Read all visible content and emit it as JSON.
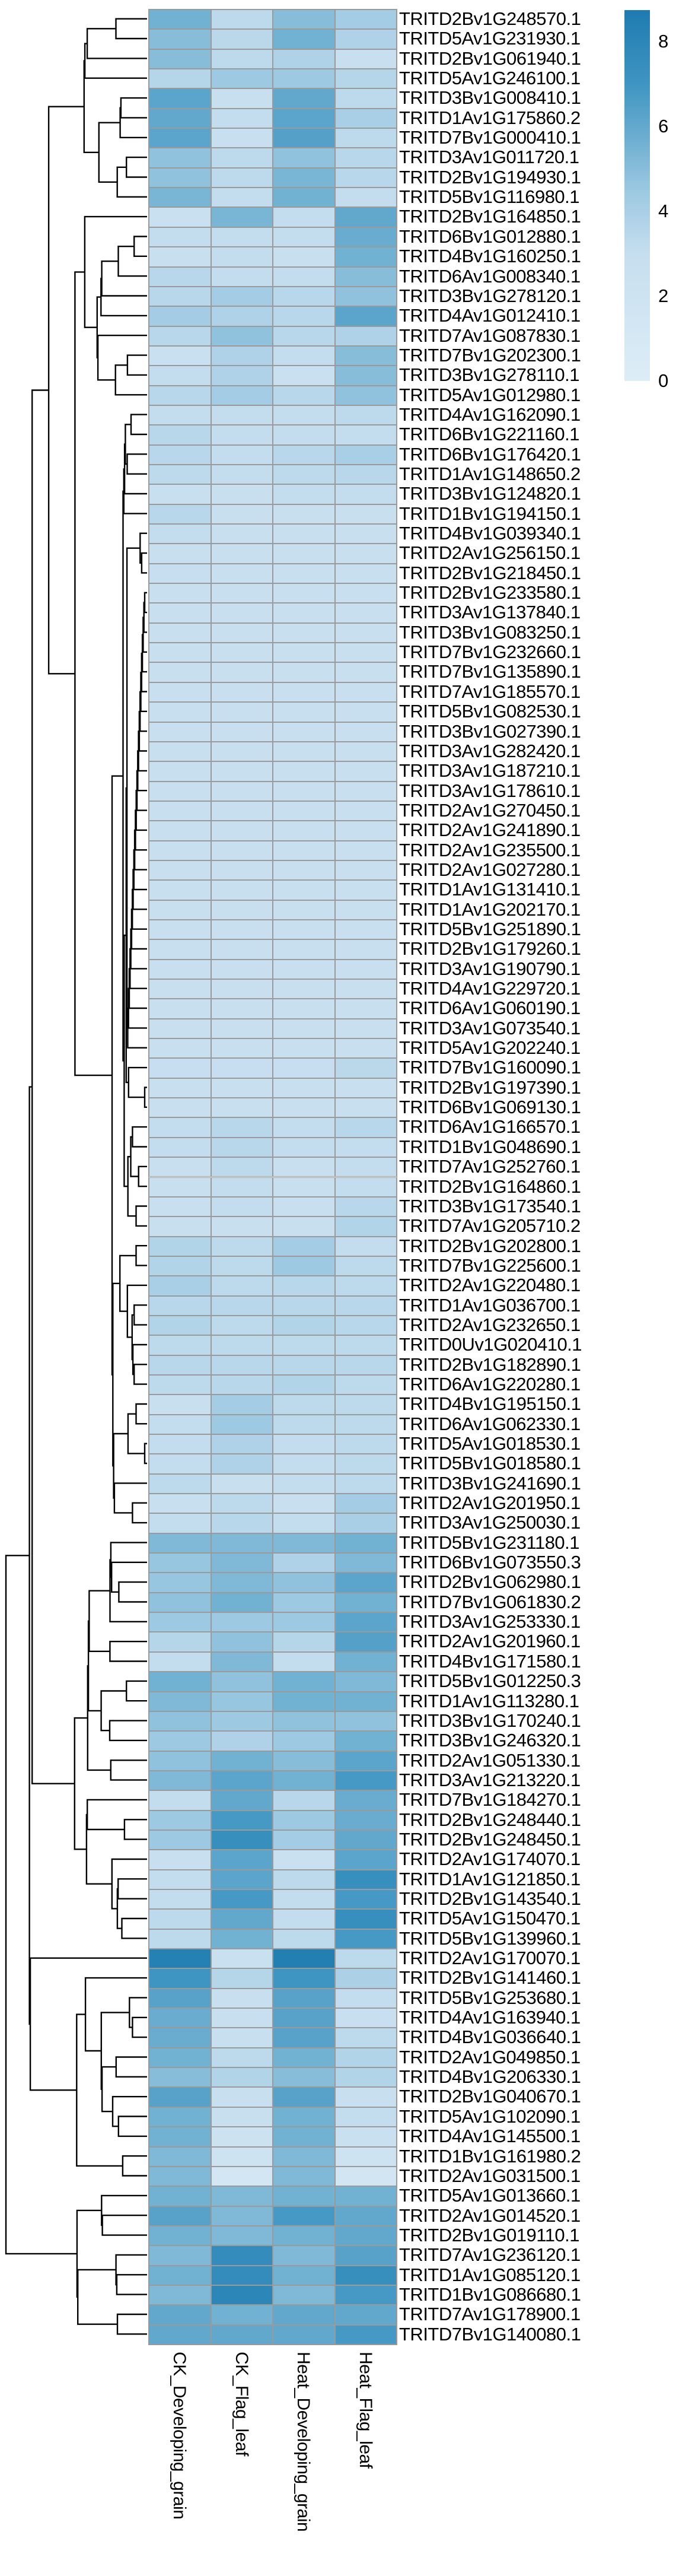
{
  "chart_data": {
    "type": "heatmap",
    "title": "",
    "xlabel": "",
    "ylabel": "",
    "grid": false,
    "row_dendrogram": true,
    "colorbar_position": "top-right",
    "columns": [
      "CK_Developing_grain",
      "CK_Flag_leaf",
      "Heat_Developing_grain",
      "Heat_Flag_leaf"
    ],
    "rows": [
      "TRITD2Bv1G248570.1",
      "TRITD5Av1G231930.1",
      "TRITD2Bv1G061940.1",
      "TRITD5Av1G246100.1",
      "TRITD3Bv1G008410.1",
      "TRITD1Av1G175860.2",
      "TRITD7Bv1G000410.1",
      "TRITD3Av1G011720.1",
      "TRITD2Bv1G194930.1",
      "TRITD5Bv1G116980.1",
      "TRITD2Bv1G164850.1",
      "TRITD6Bv1G012880.1",
      "TRITD4Bv1G160250.1",
      "TRITD6Av1G008340.1",
      "TRITD3Bv1G278120.1",
      "TRITD4Av1G012410.1",
      "TRITD7Av1G087830.1",
      "TRITD7Bv1G202300.1",
      "TRITD3Bv1G278110.1",
      "TRITD5Av1G012980.1",
      "TRITD4Av1G162090.1",
      "TRITD6Bv1G221160.1",
      "TRITD6Bv1G176420.1",
      "TRITD1Av1G148650.2",
      "TRITD3Bv1G124820.1",
      "TRITD1Bv1G194150.1",
      "TRITD4Bv1G039340.1",
      "TRITD2Av1G256150.1",
      "TRITD2Bv1G218450.1",
      "TRITD2Bv1G233580.1",
      "TRITD3Av1G137840.1",
      "TRITD3Bv1G083250.1",
      "TRITD7Bv1G232660.1",
      "TRITD7Bv1G135890.1",
      "TRITD7Av1G185570.1",
      "TRITD5Bv1G082530.1",
      "TRITD3Bv1G027390.1",
      "TRITD3Av1G282420.1",
      "TRITD3Av1G187210.1",
      "TRITD3Av1G178610.1",
      "TRITD2Av1G270450.1",
      "TRITD2Av1G241890.1",
      "TRITD2Av1G235500.1",
      "TRITD2Av1G027280.1",
      "TRITD1Av1G131410.1",
      "TRITD1Av1G202170.1",
      "TRITD5Bv1G251890.1",
      "TRITD2Bv1G179260.1",
      "TRITD3Av1G190790.1",
      "TRITD4Av1G229720.1",
      "TRITD6Av1G060190.1",
      "TRITD3Av1G073540.1",
      "TRITD5Av1G202240.1",
      "TRITD7Bv1G160090.1",
      "TRITD2Bv1G197390.1",
      "TRITD6Bv1G069130.1",
      "TRITD6Av1G166570.1",
      "TRITD1Bv1G048690.1",
      "TRITD7Av1G252760.1",
      "TRITD2Bv1G164860.1",
      "TRITD3Bv1G173540.1",
      "TRITD7Av1G205710.2",
      "TRITD2Bv1G202800.1",
      "TRITD7Bv1G225600.1",
      "TRITD2Av1G220480.1",
      "TRITD1Av1G036700.1",
      "TRITD2Av1G232650.1",
      "TRITD0Uv1G020410.1",
      "TRITD2Bv1G182890.1",
      "TRITD6Av1G220280.1",
      "TRITD4Bv1G195150.1",
      "TRITD6Av1G062330.1",
      "TRITD5Av1G018530.1",
      "TRITD5Bv1G018580.1",
      "TRITD3Bv1G241690.1",
      "TRITD2Av1G201950.1",
      "TRITD3Av1G250030.1",
      "TRITD5Bv1G231180.1",
      "TRITD6Bv1G073550.3",
      "TRITD2Bv1G062980.1",
      "TRITD7Bv1G061830.2",
      "TRITD3Av1G253330.1",
      "TRITD2Av1G201960.1",
      "TRITD4Bv1G171580.1",
      "TRITD5Bv1G012250.3",
      "TRITD1Av1G113280.1",
      "TRITD3Bv1G170240.1",
      "TRITD3Bv1G246320.1",
      "TRITD2Av1G051330.1",
      "TRITD3Av1G213220.1",
      "TRITD7Bv1G184270.1",
      "TRITD2Bv1G248440.1",
      "TRITD2Bv1G248450.1",
      "TRITD2Av1G174070.1",
      "TRITD1Av1G121850.1",
      "TRITD2Bv1G143540.1",
      "TRITD5Av1G150470.1",
      "TRITD5Bv1G139960.1",
      "TRITD2Av1G170070.1",
      "TRITD2Bv1G141460.1",
      "TRITD5Bv1G253680.1",
      "TRITD4Av1G163940.1",
      "TRITD4Bv1G036640.1",
      "TRITD2Av1G049850.1",
      "TRITD4Bv1G206330.1",
      "TRITD2Bv1G040670.1",
      "TRITD5Av1G102090.1",
      "TRITD4Av1G145500.1",
      "TRITD1Bv1G161980.2",
      "TRITD2Av1G031500.1",
      "TRITD5Av1G013660.1",
      "TRITD2Av1G014520.1",
      "TRITD2Bv1G019110.1",
      "TRITD7Av1G236120.1",
      "TRITD1Av1G085120.1",
      "TRITD1Bv1G086680.1",
      "TRITD7Av1G178900.1",
      "TRITD7Bv1G140080.1"
    ],
    "values": [
      [
        5.6,
        3.3,
        5.0,
        4.2
      ],
      [
        5.0,
        3.4,
        5.6,
        3.8
      ],
      [
        5.0,
        3.3,
        3.8,
        2.9
      ],
      [
        3.6,
        4.4,
        4.4,
        3.6
      ],
      [
        6.2,
        2.9,
        6.0,
        3.3
      ],
      [
        6.0,
        3.1,
        6.2,
        4.0
      ],
      [
        6.2,
        2.9,
        6.4,
        3.3
      ],
      [
        4.8,
        3.3,
        4.8,
        3.5
      ],
      [
        4.8,
        3.3,
        5.4,
        3.5
      ],
      [
        5.4,
        3.1,
        5.6,
        3.1
      ],
      [
        2.7,
        5.4,
        3.1,
        6.0
      ],
      [
        3.1,
        3.1,
        3.1,
        5.8
      ],
      [
        2.9,
        3.1,
        2.9,
        5.6
      ],
      [
        3.5,
        3.1,
        3.1,
        5.0
      ],
      [
        3.5,
        4.2,
        3.5,
        4.8
      ],
      [
        4.2,
        3.8,
        3.5,
        6.2
      ],
      [
        3.5,
        4.8,
        3.5,
        3.8
      ],
      [
        2.7,
        3.8,
        3.1,
        5.0
      ],
      [
        3.1,
        3.8,
        2.7,
        5.0
      ],
      [
        3.5,
        4.2,
        3.5,
        4.8
      ],
      [
        3.1,
        3.1,
        3.1,
        3.3
      ],
      [
        3.5,
        3.1,
        3.1,
        3.1
      ],
      [
        3.5,
        3.1,
        3.5,
        4.0
      ],
      [
        3.3,
        3.1,
        3.3,
        3.5
      ],
      [
        2.9,
        2.9,
        3.1,
        3.1
      ],
      [
        3.5,
        2.9,
        2.9,
        2.9
      ],
      [
        3.1,
        2.9,
        2.9,
        2.9
      ],
      [
        2.9,
        2.9,
        2.9,
        2.9
      ],
      [
        3.0,
        2.9,
        2.9,
        2.9
      ],
      [
        2.8,
        2.8,
        2.8,
        2.8
      ],
      [
        2.8,
        2.8,
        2.8,
        2.8
      ],
      [
        2.8,
        2.8,
        2.8,
        2.8
      ],
      [
        2.8,
        2.8,
        2.8,
        2.8
      ],
      [
        2.8,
        2.8,
        2.8,
        2.8
      ],
      [
        2.8,
        2.8,
        2.8,
        2.8
      ],
      [
        2.8,
        2.8,
        2.8,
        2.8
      ],
      [
        2.8,
        2.8,
        2.8,
        2.8
      ],
      [
        2.8,
        2.8,
        2.8,
        2.8
      ],
      [
        2.8,
        2.8,
        2.8,
        2.8
      ],
      [
        2.8,
        2.8,
        2.8,
        2.8
      ],
      [
        2.8,
        2.8,
        2.8,
        2.8
      ],
      [
        2.8,
        2.8,
        2.8,
        2.8
      ],
      [
        2.8,
        2.8,
        2.8,
        2.8
      ],
      [
        2.8,
        2.8,
        2.8,
        2.8
      ],
      [
        2.8,
        2.8,
        2.8,
        2.8
      ],
      [
        2.8,
        2.8,
        2.8,
        2.8
      ],
      [
        2.8,
        2.8,
        2.8,
        2.8
      ],
      [
        2.8,
        2.8,
        2.8,
        2.8
      ],
      [
        2.8,
        2.8,
        2.8,
        2.8
      ],
      [
        2.8,
        2.8,
        2.8,
        2.8
      ],
      [
        2.8,
        2.8,
        2.8,
        2.8
      ],
      [
        2.8,
        2.8,
        2.8,
        2.8
      ],
      [
        2.8,
        2.8,
        2.8,
        2.8
      ],
      [
        3.0,
        3.0,
        3.0,
        3.4
      ],
      [
        2.9,
        2.9,
        2.9,
        2.9
      ],
      [
        2.9,
        2.9,
        2.9,
        2.9
      ],
      [
        3.1,
        3.5,
        3.1,
        3.5
      ],
      [
        3.1,
        3.5,
        3.1,
        3.1
      ],
      [
        2.9,
        3.3,
        2.9,
        3.1
      ],
      [
        2.9,
        3.1,
        2.9,
        3.1
      ],
      [
        2.9,
        3.1,
        2.9,
        3.5
      ],
      [
        2.9,
        2.9,
        2.9,
        3.7
      ],
      [
        3.7,
        3.3,
        4.2,
        3.1
      ],
      [
        3.7,
        3.3,
        4.4,
        3.3
      ],
      [
        4.0,
        3.3,
        3.5,
        3.3
      ],
      [
        3.5,
        3.5,
        3.5,
        3.5
      ],
      [
        3.7,
        3.3,
        3.7,
        3.5
      ],
      [
        3.3,
        3.3,
        3.3,
        3.3
      ],
      [
        3.5,
        3.5,
        3.5,
        3.5
      ],
      [
        3.3,
        3.5,
        3.7,
        3.3
      ],
      [
        2.9,
        4.2,
        3.3,
        3.3
      ],
      [
        3.1,
        4.4,
        3.3,
        3.3
      ],
      [
        3.1,
        3.8,
        3.1,
        3.3
      ],
      [
        3.1,
        3.8,
        3.1,
        3.3
      ],
      [
        3.3,
        2.9,
        3.1,
        3.3
      ],
      [
        2.9,
        3.3,
        2.9,
        4.2
      ],
      [
        3.1,
        3.5,
        3.1,
        4.0
      ],
      [
        5.2,
        5.2,
        5.2,
        5.6
      ],
      [
        4.6,
        5.2,
        3.8,
        5.2
      ],
      [
        4.6,
        5.2,
        4.8,
        6.2
      ],
      [
        4.8,
        5.6,
        4.4,
        5.6
      ],
      [
        4.4,
        4.4,
        4.4,
        6.2
      ],
      [
        3.6,
        4.8,
        3.6,
        6.4
      ],
      [
        3.1,
        5.2,
        3.1,
        5.6
      ],
      [
        5.6,
        4.8,
        5.6,
        5.2
      ],
      [
        5.2,
        4.6,
        5.6,
        5.6
      ],
      [
        4.8,
        4.4,
        4.8,
        4.8
      ],
      [
        4.4,
        3.8,
        4.4,
        5.6
      ],
      [
        4.8,
        5.6,
        5.0,
        6.2
      ],
      [
        5.2,
        6.2,
        5.6,
        6.8
      ],
      [
        3.1,
        6.0,
        3.5,
        5.8
      ],
      [
        4.4,
        6.8,
        4.4,
        5.8
      ],
      [
        4.4,
        7.4,
        4.2,
        6.0
      ],
      [
        2.9,
        6.2,
        2.7,
        6.2
      ],
      [
        3.1,
        6.2,
        3.3,
        7.4
      ],
      [
        3.1,
        6.8,
        3.1,
        6.8
      ],
      [
        3.3,
        6.0,
        3.1,
        7.4
      ],
      [
        3.3,
        5.6,
        3.3,
        6.8
      ],
      [
        8.4,
        2.6,
        8.5,
        3.3
      ],
      [
        7.0,
        3.6,
        7.0,
        3.9
      ],
      [
        6.3,
        2.9,
        6.3,
        3.1
      ],
      [
        5.8,
        2.9,
        6.3,
        2.9
      ],
      [
        5.8,
        2.9,
        6.3,
        3.3
      ],
      [
        5.6,
        3.3,
        5.6,
        3.7
      ],
      [
        5.0,
        3.7,
        5.0,
        3.7
      ],
      [
        6.3,
        2.9,
        6.3,
        2.9
      ],
      [
        5.6,
        2.9,
        5.6,
        3.1
      ],
      [
        5.6,
        2.2,
        5.6,
        2.6
      ],
      [
        5.2,
        2.0,
        5.2,
        2.0
      ],
      [
        5.2,
        1.4,
        5.2,
        1.6
      ],
      [
        5.6,
        5.2,
        5.6,
        5.6
      ],
      [
        6.3,
        5.2,
        6.8,
        6.0
      ],
      [
        5.6,
        5.2,
        5.6,
        6.0
      ],
      [
        5.2,
        7.6,
        5.2,
        6.3
      ],
      [
        5.6,
        7.6,
        5.6,
        7.4
      ],
      [
        5.2,
        8.0,
        5.2,
        6.8
      ],
      [
        6.0,
        5.6,
        6.0,
        6.0
      ],
      [
        6.0,
        6.0,
        6.0,
        6.8
      ]
    ],
    "colorbar": {
      "ticks": [
        8,
        6,
        4,
        2,
        0
      ],
      "vmin": 0,
      "vmax": 8.74,
      "stops": [
        [
          0,
          "#ddedf7"
        ],
        [
          3,
          "#c6deef"
        ],
        [
          4.5,
          "#9bc8e1"
        ],
        [
          6,
          "#62a8cd"
        ],
        [
          7,
          "#3f95c2"
        ],
        [
          8.7,
          "#1f7bb0"
        ]
      ]
    },
    "cell_border_color": "#9a9a9a",
    "dendrogram_color": "#000000"
  }
}
